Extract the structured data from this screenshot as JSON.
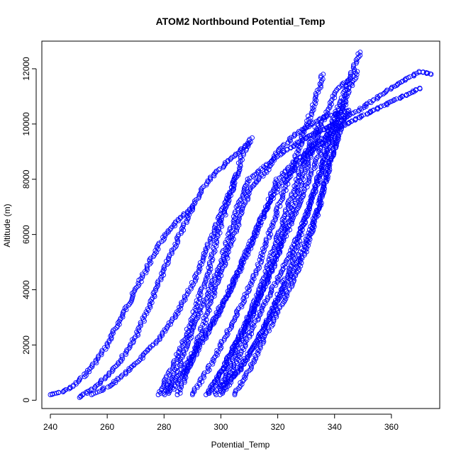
{
  "chart_data": {
    "type": "scatter",
    "title": "ATOM2 Northbound Potential_Temp",
    "xlabel": "Potential_Temp",
    "ylabel": "Altitude (m)",
    "xlim": [
      237,
      377
    ],
    "ylim": [
      -300,
      13000
    ],
    "xticks": [
      240,
      260,
      280,
      300,
      320,
      340,
      360
    ],
    "yticks": [
      0,
      2000,
      4000,
      6000,
      8000,
      10000,
      12000
    ],
    "marker": "open-circle",
    "color": "#0000ff",
    "grid": false,
    "legend": "none",
    "series": [
      {
        "points": [
          [
            240,
            200
          ],
          [
            244,
            300
          ],
          [
            248,
            500
          ],
          [
            252,
            900
          ],
          [
            256,
            1400
          ],
          [
            260,
            2000
          ],
          [
            264,
            2800
          ],
          [
            268,
            3600
          ],
          [
            272,
            4400
          ],
          [
            276,
            5200
          ],
          [
            280,
            5900
          ],
          [
            285,
            6500
          ],
          [
            290,
            7000
          ]
        ]
      },
      {
        "points": [
          [
            250,
            100
          ],
          [
            255,
            400
          ],
          [
            260,
            900
          ],
          [
            265,
            1500
          ],
          [
            270,
            2300
          ],
          [
            274,
            3200
          ],
          [
            278,
            4200
          ],
          [
            282,
            5200
          ],
          [
            286,
            6100
          ],
          [
            290,
            7000
          ],
          [
            295,
            7900
          ],
          [
            302,
            8600
          ],
          [
            310,
            9300
          ]
        ]
      },
      {
        "points": [
          [
            255,
            200
          ],
          [
            262,
            600
          ],
          [
            270,
            1300
          ],
          [
            278,
            2200
          ],
          [
            285,
            3200
          ],
          [
            290,
            4200
          ],
          [
            294,
            5200
          ],
          [
            298,
            6200
          ],
          [
            302,
            7200
          ],
          [
            306,
            8200
          ]
        ]
      },
      {
        "points": [
          [
            280,
            300
          ],
          [
            284,
            1000
          ],
          [
            288,
            2000
          ],
          [
            292,
            3000
          ],
          [
            296,
            4000
          ],
          [
            300,
            5000
          ],
          [
            303,
            6000
          ],
          [
            306,
            7000
          ],
          [
            310,
            8000
          ],
          [
            316,
            8500
          ],
          [
            322,
            9000
          ],
          [
            330,
            9500
          ],
          [
            340,
            10000
          ],
          [
            350,
            10600
          ],
          [
            360,
            11300
          ],
          [
            370,
            11900
          ],
          [
            374,
            11800
          ]
        ]
      },
      {
        "points": [
          [
            280,
            200
          ],
          [
            286,
            1000
          ],
          [
            292,
            2000
          ],
          [
            298,
            3000
          ],
          [
            303,
            4000
          ],
          [
            308,
            5000
          ],
          [
            312,
            6000
          ],
          [
            316,
            7000
          ],
          [
            320,
            8000
          ],
          [
            326,
            8600
          ],
          [
            332,
            9200
          ],
          [
            340,
            9800
          ],
          [
            350,
            10300
          ],
          [
            360,
            10800
          ],
          [
            370,
            11300
          ]
        ]
      },
      {
        "points": [
          [
            278,
            200
          ],
          [
            283,
            1200
          ],
          [
            288,
            2400
          ],
          [
            292,
            3600
          ],
          [
            296,
            4800
          ],
          [
            299,
            6000
          ],
          [
            302,
            7000
          ],
          [
            305,
            8000
          ],
          [
            308,
            9000
          ],
          [
            311,
            9500
          ]
        ]
      },
      {
        "points": [
          [
            285,
            200
          ],
          [
            290,
            1500
          ],
          [
            294,
            2800
          ],
          [
            298,
            4000
          ],
          [
            302,
            5200
          ],
          [
            306,
            6400
          ],
          [
            310,
            7600
          ],
          [
            316,
            8300
          ],
          [
            320,
            9000
          ],
          [
            326,
            9600
          ],
          [
            335,
            10200
          ],
          [
            345,
            10500
          ]
        ]
      },
      {
        "points": [
          [
            290,
            200
          ],
          [
            296,
            1200
          ],
          [
            302,
            2400
          ],
          [
            308,
            3600
          ],
          [
            313,
            4800
          ],
          [
            317,
            6000
          ],
          [
            321,
            7200
          ],
          [
            325,
            8400
          ],
          [
            329,
            9600
          ],
          [
            333,
            10800
          ],
          [
            336,
            11800
          ]
        ]
      },
      {
        "points": [
          [
            295,
            200
          ],
          [
            300,
            1000
          ],
          [
            305,
            2000
          ],
          [
            310,
            3000
          ],
          [
            315,
            4000
          ],
          [
            319,
            5000
          ],
          [
            323,
            6000
          ],
          [
            327,
            7000
          ],
          [
            331,
            8000
          ],
          [
            335,
            9000
          ],
          [
            339,
            10000
          ],
          [
            343,
            11000
          ],
          [
            346,
            11800
          ],
          [
            349,
            12600
          ]
        ]
      },
      {
        "points": [
          [
            298,
            200
          ],
          [
            303,
            1200
          ],
          [
            308,
            2400
          ],
          [
            313,
            3600
          ],
          [
            318,
            4800
          ],
          [
            322,
            6000
          ],
          [
            326,
            7200
          ],
          [
            330,
            8400
          ],
          [
            334,
            9600
          ],
          [
            338,
            10600
          ],
          [
            341,
            11300
          ],
          [
            345,
            11600
          ]
        ]
      },
      {
        "points": [
          [
            300,
            300
          ],
          [
            306,
            1500
          ],
          [
            312,
            2800
          ],
          [
            318,
            4000
          ],
          [
            324,
            5200
          ],
          [
            329,
            6400
          ],
          [
            333,
            7600
          ],
          [
            337,
            8800
          ],
          [
            341,
            10000
          ],
          [
            344,
            11000
          ],
          [
            348,
            11900
          ]
        ]
      },
      {
        "points": [
          [
            300,
            200
          ],
          [
            307,
            1200
          ],
          [
            314,
            2400
          ],
          [
            320,
            3600
          ],
          [
            326,
            4800
          ],
          [
            331,
            6000
          ],
          [
            335,
            7200
          ],
          [
            338,
            8400
          ],
          [
            340,
            9200
          ],
          [
            342,
            10000
          ]
        ]
      },
      {
        "points": [
          [
            305,
            200
          ],
          [
            312,
            1500
          ],
          [
            318,
            2800
          ],
          [
            324,
            4000
          ],
          [
            329,
            5200
          ],
          [
            333,
            6400
          ],
          [
            336,
            7600
          ],
          [
            339,
            8800
          ],
          [
            342,
            9800
          ],
          [
            345,
            10500
          ]
        ]
      },
      {
        "points": [
          [
            300,
            500
          ],
          [
            306,
            1000
          ],
          [
            312,
            2000
          ],
          [
            317,
            3000
          ],
          [
            321,
            4000
          ],
          [
            325,
            5000
          ],
          [
            328,
            6000
          ],
          [
            331,
            7000
          ],
          [
            334,
            8000
          ],
          [
            337,
            9000
          ],
          [
            340,
            10000
          ],
          [
            344,
            10800
          ]
        ]
      },
      {
        "points": [
          [
            296,
            250
          ],
          [
            302,
            1400
          ],
          [
            308,
            2600
          ],
          [
            313,
            3800
          ],
          [
            317,
            5000
          ],
          [
            321,
            6200
          ],
          [
            325,
            7400
          ],
          [
            328,
            8400
          ],
          [
            331,
            9200
          ],
          [
            334,
            10000
          ]
        ]
      },
      {
        "points": [
          [
            282,
            250
          ],
          [
            288,
            1100
          ],
          [
            294,
            2200
          ],
          [
            300,
            3300
          ],
          [
            305,
            4400
          ],
          [
            310,
            5600
          ],
          [
            315,
            6700
          ],
          [
            320,
            7700
          ],
          [
            326,
            8400
          ],
          [
            332,
            9000
          ],
          [
            338,
            9500
          ]
        ]
      }
    ]
  }
}
